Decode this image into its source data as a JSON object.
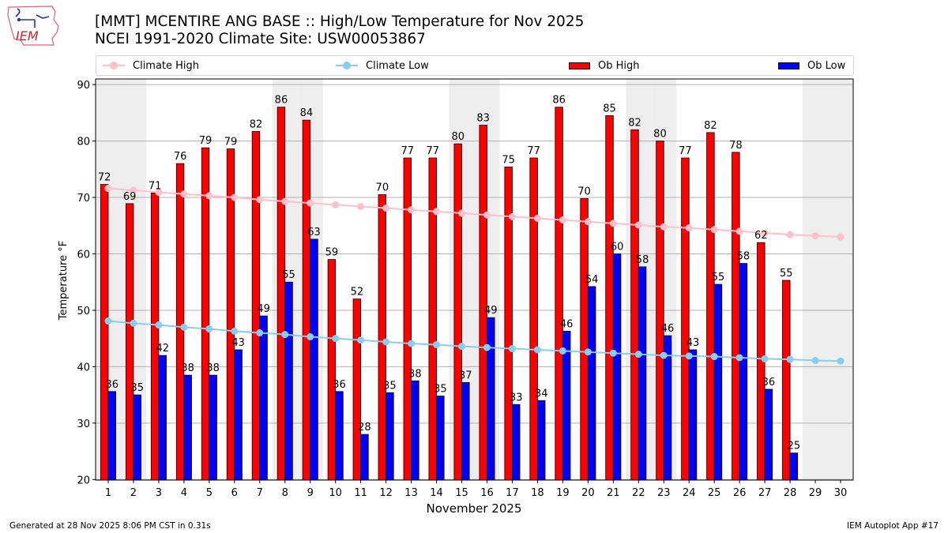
{
  "header": {
    "title_line1": "[MMT] MCENTIRE ANG BASE :: High/Low Temperature for Nov 2025",
    "title_line2": "NCEI 1991-2020 Climate Site: USW00053867",
    "logo_text": "IEM"
  },
  "legend": {
    "items": [
      {
        "label": "Climate High",
        "type": "line",
        "color": "#ffc0cb"
      },
      {
        "label": "Climate Low",
        "type": "line",
        "color": "#87ceeb"
      },
      {
        "label": "Ob High",
        "type": "bar",
        "color": "#ff0000"
      },
      {
        "label": "Ob Low",
        "type": "bar",
        "color": "#0000ff"
      }
    ]
  },
  "footer": {
    "generated": "Generated at 28 Nov 2025 8:06 PM CST in 0.31s",
    "app": "IEM Autoplot App #17"
  },
  "chart_data": {
    "type": "bar",
    "title": "[MMT] MCENTIRE ANG BASE :: High/Low Temperature for Nov 2025",
    "subtitle": "NCEI 1991-2020 Climate Site: USW00053867",
    "xlabel": "November 2025",
    "ylabel": "Temperature °F",
    "ylim": [
      19.9,
      91
    ],
    "yticks": [
      20,
      30,
      40,
      50,
      60,
      70,
      80,
      90
    ],
    "grid": "y",
    "legend_position": "top (above plot, 4 columns)",
    "categories": [
      1,
      2,
      3,
      4,
      5,
      6,
      7,
      8,
      9,
      10,
      11,
      12,
      13,
      14,
      15,
      16,
      17,
      18,
      19,
      20,
      21,
      22,
      23,
      24,
      25,
      26,
      27,
      28,
      29,
      30
    ],
    "weekend_shaded_days": [
      1,
      2,
      8,
      9,
      15,
      16,
      22,
      23,
      29,
      30
    ],
    "shade_color": "#eeeeee",
    "series": [
      {
        "name": "Ob High",
        "kind": "bar",
        "color": "#ff0000",
        "values": [
          72.3,
          68.9,
          70.8,
          76.0,
          78.8,
          78.6,
          81.7,
          86.0,
          83.7,
          59.0,
          52.0,
          70.5,
          77.0,
          77.0,
          79.5,
          82.8,
          75.4,
          77.0,
          86.0,
          69.8,
          84.5,
          82.0,
          80.0,
          77.0,
          81.5,
          78.0,
          62.0,
          55.3,
          null,
          null
        ],
        "labels": [
          "72",
          "69",
          "71",
          "76",
          "79",
          "79",
          "82",
          "86",
          "84",
          "59",
          "52",
          "70",
          "77",
          "77",
          "80",
          "83",
          "75",
          "77",
          "86",
          "70",
          "85",
          "82",
          "80",
          "77",
          "82",
          "78",
          "62",
          "55",
          null,
          null
        ]
      },
      {
        "name": "Ob Low",
        "kind": "bar",
        "color": "#0000ff",
        "values": [
          35.6,
          35.0,
          42.0,
          38.5,
          38.5,
          43.0,
          49.0,
          55.0,
          62.6,
          35.6,
          28.0,
          35.4,
          37.5,
          34.8,
          37.2,
          48.7,
          33.3,
          34.0,
          46.3,
          54.2,
          60.0,
          57.7,
          45.5,
          43.0,
          54.6,
          58.3,
          36.0,
          24.7,
          null,
          null
        ],
        "labels": [
          "36",
          "35",
          "42",
          "38",
          "38",
          "43",
          "49",
          "55",
          "63",
          "36",
          "28",
          "35",
          "38",
          "35",
          "37",
          "49",
          "33",
          "34",
          "46",
          "54",
          "60",
          "58",
          "46",
          "43",
          "55",
          "58",
          "36",
          "25",
          null,
          null
        ]
      },
      {
        "name": "Climate High",
        "kind": "line",
        "color": "#ffc0cb",
        "values": [
          71.6,
          71.3,
          70.9,
          70.6,
          70.3,
          70.0,
          69.6,
          69.3,
          69.0,
          68.7,
          68.4,
          68.1,
          67.8,
          67.5,
          67.2,
          66.9,
          66.6,
          66.3,
          66.0,
          65.7,
          65.4,
          65.1,
          64.8,
          64.6,
          64.3,
          64.0,
          63.7,
          63.4,
          63.2,
          63.0
        ]
      },
      {
        "name": "Climate Low",
        "kind": "line",
        "color": "#87ceeb",
        "values": [
          48.1,
          47.7,
          47.4,
          47.0,
          46.7,
          46.3,
          46.0,
          45.7,
          45.3,
          45.0,
          44.7,
          44.4,
          44.1,
          43.9,
          43.6,
          43.4,
          43.2,
          43.0,
          42.8,
          42.6,
          42.4,
          42.2,
          42.0,
          41.9,
          41.8,
          41.6,
          41.4,
          41.3,
          41.1,
          41.0
        ]
      }
    ]
  }
}
